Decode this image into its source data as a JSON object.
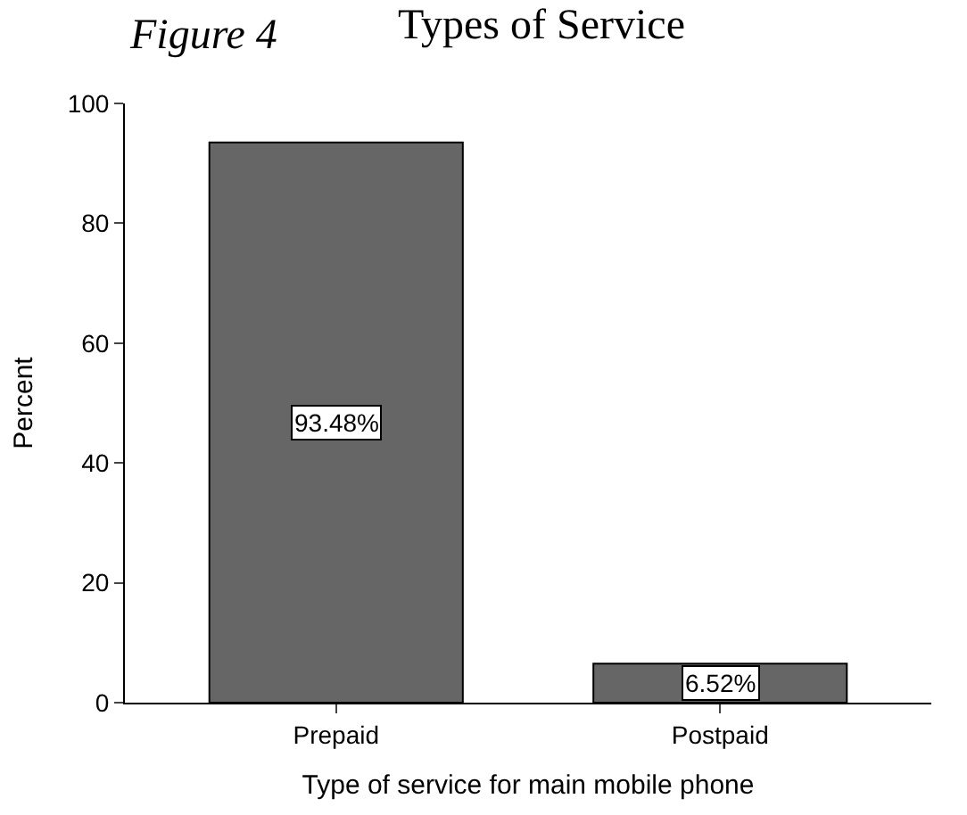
{
  "chart_data": {
    "type": "bar",
    "title": "Types of Service",
    "annotations": [
      "Figure 4"
    ],
    "xlabel": "Type of service for main mobile phone",
    "ylabel": "Percent",
    "categories": [
      "Prepaid",
      "Postpaid"
    ],
    "values": [
      93.48,
      6.52
    ],
    "color": "#666666",
    "value_labels": [
      "93.48%",
      "6.52%"
    ],
    "ylim": [
      0,
      100
    ],
    "yticks": [
      0,
      20,
      40,
      60,
      80,
      100
    ]
  }
}
